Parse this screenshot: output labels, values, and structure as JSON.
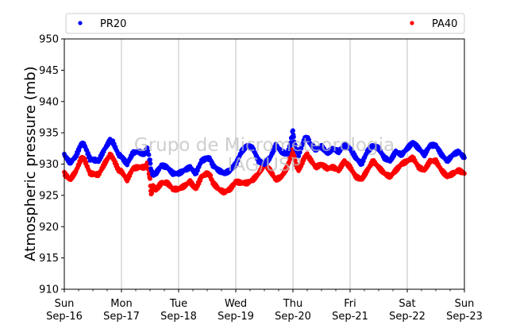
{
  "chart_data": {
    "type": "scatter",
    "ylabel": "Atmospheric pressure (mb)",
    "ylim": [
      910,
      950
    ],
    "yticks": [
      910,
      915,
      920,
      925,
      930,
      935,
      940,
      945,
      950
    ],
    "xlim_days": [
      16,
      23
    ],
    "x_ticks": [
      {
        "day": 16,
        "weekday": "Sun",
        "date": "Sep-16"
      },
      {
        "day": 17,
        "weekday": "Mon",
        "date": "Sep-17"
      },
      {
        "day": 18,
        "weekday": "Tue",
        "date": "Sep-18"
      },
      {
        "day": 19,
        "weekday": "Wed",
        "date": "Sep-19"
      },
      {
        "day": 20,
        "weekday": "Thu",
        "date": "Sep-20"
      },
      {
        "day": 21,
        "weekday": "Fri",
        "date": "Sep-21"
      },
      {
        "day": 22,
        "weekday": "Sat",
        "date": "Sep-22"
      },
      {
        "day": 23,
        "weekday": "Sun",
        "date": "Sep-23"
      }
    ],
    "grid": "vertical",
    "legend": "top",
    "watermark": [
      "Grupo de Micrometeorologia",
      "IAG/USP"
    ],
    "series": [
      {
        "name": "PR20",
        "color": "#0000ff",
        "x": [
          16.0,
          16.1,
          16.2,
          16.3,
          16.35,
          16.45,
          16.6,
          16.7,
          16.8,
          16.85,
          16.95,
          17.0,
          17.1,
          17.2,
          17.3,
          17.4,
          17.45,
          17.5,
          17.52,
          17.55,
          17.6,
          17.7,
          17.8,
          17.9,
          18.0,
          18.1,
          18.2,
          18.3,
          18.4,
          18.5,
          18.55,
          18.6,
          18.7,
          18.8,
          18.9,
          19.0,
          19.1,
          19.2,
          19.3,
          19.4,
          19.5,
          19.6,
          19.7,
          19.8,
          19.9,
          19.95,
          20.0,
          20.02,
          20.05,
          20.1,
          20.2,
          20.25,
          20.3,
          20.4,
          20.5,
          20.6,
          20.7,
          20.8,
          20.9,
          21.0,
          21.1,
          21.2,
          21.3,
          21.4,
          21.5,
          21.6,
          21.7,
          21.8,
          21.9,
          22.0,
          22.1,
          22.2,
          22.3,
          22.4,
          22.5,
          22.6,
          22.7,
          22.8,
          22.9,
          23.0
        ],
        "y": [
          931.5,
          930.2,
          931.2,
          933.3,
          933.1,
          930.8,
          930.5,
          932.3,
          933.8,
          933.5,
          931.5,
          931.2,
          930.0,
          931.8,
          932.0,
          931.5,
          932.5,
          930.5,
          929.0,
          928.3,
          928.5,
          929.8,
          929.5,
          928.5,
          928.5,
          929.0,
          929.5,
          928.5,
          930.5,
          931.0,
          930.8,
          929.8,
          929.0,
          928.5,
          929.0,
          930.0,
          932.0,
          933.0,
          932.5,
          930.5,
          930.0,
          931.0,
          933.0,
          932.0,
          931.5,
          933.0,
          935.5,
          933.5,
          932.5,
          931.5,
          934.0,
          934.3,
          933.3,
          932.3,
          932.8,
          931.7,
          932.5,
          932.0,
          933.0,
          932.5,
          931.0,
          930.0,
          932.0,
          933.0,
          932.5,
          931.0,
          930.5,
          932.0,
          931.5,
          932.5,
          933.5,
          932.5,
          931.5,
          933.0,
          933.0,
          931.5,
          930.5,
          931.5,
          932.0,
          931.0
        ]
      },
      {
        "name": "PA40",
        "color": "#ff0000",
        "x": [
          16.0,
          16.1,
          16.2,
          16.3,
          16.35,
          16.45,
          16.6,
          16.7,
          16.8,
          16.85,
          16.95,
          17.0,
          17.1,
          17.2,
          17.3,
          17.4,
          17.45,
          17.5,
          17.52,
          17.55,
          17.6,
          17.7,
          17.8,
          17.9,
          18.0,
          18.1,
          18.2,
          18.3,
          18.4,
          18.5,
          18.55,
          18.6,
          18.7,
          18.8,
          18.9,
          19.0,
          19.1,
          19.2,
          19.3,
          19.4,
          19.5,
          19.6,
          19.7,
          19.8,
          19.9,
          19.95,
          20.0,
          20.02,
          20.05,
          20.1,
          20.2,
          20.25,
          20.3,
          20.4,
          20.5,
          20.6,
          20.7,
          20.8,
          20.9,
          21.0,
          21.1,
          21.2,
          21.3,
          21.4,
          21.5,
          21.6,
          21.7,
          21.8,
          21.9,
          22.0,
          22.1,
          22.2,
          22.3,
          22.4,
          22.5,
          22.6,
          22.7,
          22.8,
          22.9,
          23.0
        ],
        "y": [
          928.5,
          927.5,
          928.8,
          931.0,
          930.8,
          928.5,
          928.3,
          930.0,
          931.5,
          931.0,
          929.0,
          928.8,
          927.5,
          929.3,
          929.5,
          929.5,
          930.0,
          927.5,
          925.0,
          926.5,
          925.8,
          927.0,
          927.0,
          926.0,
          926.0,
          926.5,
          927.2,
          926.0,
          928.0,
          928.5,
          928.2,
          927.0,
          926.0,
          925.5,
          926.0,
          927.2,
          927.0,
          927.0,
          927.5,
          928.5,
          930.0,
          929.0,
          927.5,
          928.0,
          929.5,
          931.0,
          932.5,
          931.5,
          930.0,
          929.0,
          931.0,
          931.5,
          930.8,
          929.5,
          930.0,
          929.3,
          929.5,
          929.0,
          930.5,
          929.5,
          928.0,
          927.5,
          929.0,
          930.5,
          929.5,
          928.5,
          928.0,
          929.0,
          930.0,
          930.5,
          931.0,
          929.5,
          929.0,
          930.5,
          930.5,
          929.0,
          928.0,
          928.5,
          929.0,
          928.5
        ]
      }
    ]
  }
}
